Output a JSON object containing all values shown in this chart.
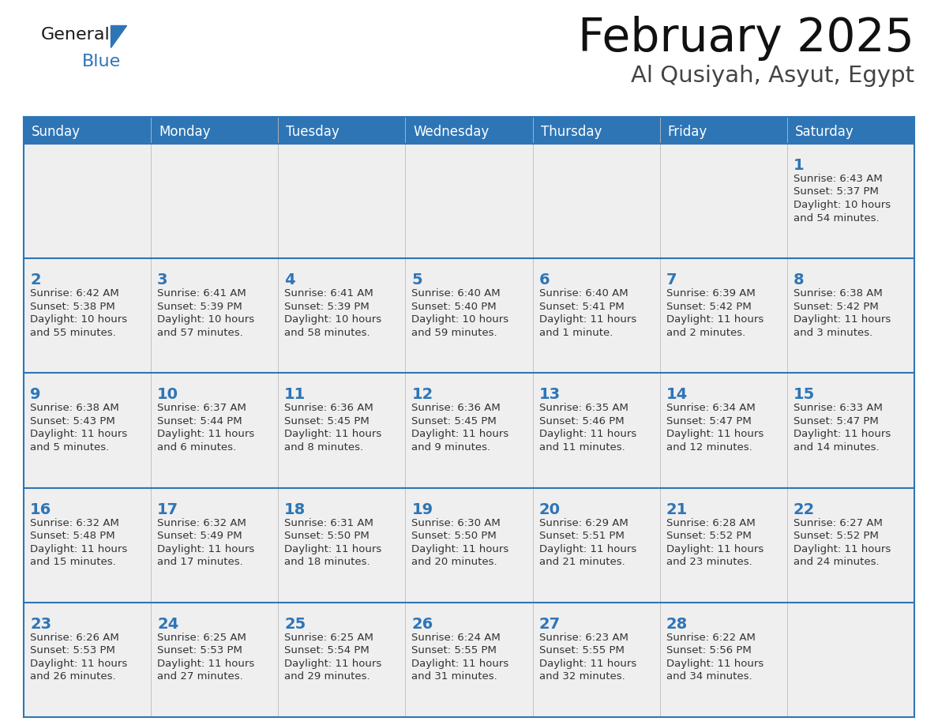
{
  "title": "February 2025",
  "subtitle": "Al Qusiyah, Asyut, Egypt",
  "header_bg": "#2E75B6",
  "header_text": "#FFFFFF",
  "cell_bg": "#EFEFEF",
  "day_number_color": "#2E75B6",
  "text_color": "#333333",
  "line_color": "#2E75B6",
  "days_of_week": [
    "Sunday",
    "Monday",
    "Tuesday",
    "Wednesday",
    "Thursday",
    "Friday",
    "Saturday"
  ],
  "weeks": [
    [
      {
        "day": null,
        "sunrise": null,
        "sunset": null,
        "daylight": null
      },
      {
        "day": null,
        "sunrise": null,
        "sunset": null,
        "daylight": null
      },
      {
        "day": null,
        "sunrise": null,
        "sunset": null,
        "daylight": null
      },
      {
        "day": null,
        "sunrise": null,
        "sunset": null,
        "daylight": null
      },
      {
        "day": null,
        "sunrise": null,
        "sunset": null,
        "daylight": null
      },
      {
        "day": null,
        "sunrise": null,
        "sunset": null,
        "daylight": null
      },
      {
        "day": 1,
        "sunrise": "6:43 AM",
        "sunset": "5:37 PM",
        "daylight": "10 hours\nand 54 minutes."
      }
    ],
    [
      {
        "day": 2,
        "sunrise": "6:42 AM",
        "sunset": "5:38 PM",
        "daylight": "10 hours\nand 55 minutes."
      },
      {
        "day": 3,
        "sunrise": "6:41 AM",
        "sunset": "5:39 PM",
        "daylight": "10 hours\nand 57 minutes."
      },
      {
        "day": 4,
        "sunrise": "6:41 AM",
        "sunset": "5:39 PM",
        "daylight": "10 hours\nand 58 minutes."
      },
      {
        "day": 5,
        "sunrise": "6:40 AM",
        "sunset": "5:40 PM",
        "daylight": "10 hours\nand 59 minutes."
      },
      {
        "day": 6,
        "sunrise": "6:40 AM",
        "sunset": "5:41 PM",
        "daylight": "11 hours\nand 1 minute."
      },
      {
        "day": 7,
        "sunrise": "6:39 AM",
        "sunset": "5:42 PM",
        "daylight": "11 hours\nand 2 minutes."
      },
      {
        "day": 8,
        "sunrise": "6:38 AM",
        "sunset": "5:42 PM",
        "daylight": "11 hours\nand 3 minutes."
      }
    ],
    [
      {
        "day": 9,
        "sunrise": "6:38 AM",
        "sunset": "5:43 PM",
        "daylight": "11 hours\nand 5 minutes."
      },
      {
        "day": 10,
        "sunrise": "6:37 AM",
        "sunset": "5:44 PM",
        "daylight": "11 hours\nand 6 minutes."
      },
      {
        "day": 11,
        "sunrise": "6:36 AM",
        "sunset": "5:45 PM",
        "daylight": "11 hours\nand 8 minutes."
      },
      {
        "day": 12,
        "sunrise": "6:36 AM",
        "sunset": "5:45 PM",
        "daylight": "11 hours\nand 9 minutes."
      },
      {
        "day": 13,
        "sunrise": "6:35 AM",
        "sunset": "5:46 PM",
        "daylight": "11 hours\nand 11 minutes."
      },
      {
        "day": 14,
        "sunrise": "6:34 AM",
        "sunset": "5:47 PM",
        "daylight": "11 hours\nand 12 minutes."
      },
      {
        "day": 15,
        "sunrise": "6:33 AM",
        "sunset": "5:47 PM",
        "daylight": "11 hours\nand 14 minutes."
      }
    ],
    [
      {
        "day": 16,
        "sunrise": "6:32 AM",
        "sunset": "5:48 PM",
        "daylight": "11 hours\nand 15 minutes."
      },
      {
        "day": 17,
        "sunrise": "6:32 AM",
        "sunset": "5:49 PM",
        "daylight": "11 hours\nand 17 minutes."
      },
      {
        "day": 18,
        "sunrise": "6:31 AM",
        "sunset": "5:50 PM",
        "daylight": "11 hours\nand 18 minutes."
      },
      {
        "day": 19,
        "sunrise": "6:30 AM",
        "sunset": "5:50 PM",
        "daylight": "11 hours\nand 20 minutes."
      },
      {
        "day": 20,
        "sunrise": "6:29 AM",
        "sunset": "5:51 PM",
        "daylight": "11 hours\nand 21 minutes."
      },
      {
        "day": 21,
        "sunrise": "6:28 AM",
        "sunset": "5:52 PM",
        "daylight": "11 hours\nand 23 minutes."
      },
      {
        "day": 22,
        "sunrise": "6:27 AM",
        "sunset": "5:52 PM",
        "daylight": "11 hours\nand 24 minutes."
      }
    ],
    [
      {
        "day": 23,
        "sunrise": "6:26 AM",
        "sunset": "5:53 PM",
        "daylight": "11 hours\nand 26 minutes."
      },
      {
        "day": 24,
        "sunrise": "6:25 AM",
        "sunset": "5:53 PM",
        "daylight": "11 hours\nand 27 minutes."
      },
      {
        "day": 25,
        "sunrise": "6:25 AM",
        "sunset": "5:54 PM",
        "daylight": "11 hours\nand 29 minutes."
      },
      {
        "day": 26,
        "sunrise": "6:24 AM",
        "sunset": "5:55 PM",
        "daylight": "11 hours\nand 31 minutes."
      },
      {
        "day": 27,
        "sunrise": "6:23 AM",
        "sunset": "5:55 PM",
        "daylight": "11 hours\nand 32 minutes."
      },
      {
        "day": 28,
        "sunrise": "6:22 AM",
        "sunset": "5:56 PM",
        "daylight": "11 hours\nand 34 minutes."
      },
      {
        "day": null,
        "sunrise": null,
        "sunset": null,
        "daylight": null
      }
    ]
  ],
  "figsize": [
    11.88,
    9.18
  ],
  "dpi": 100
}
